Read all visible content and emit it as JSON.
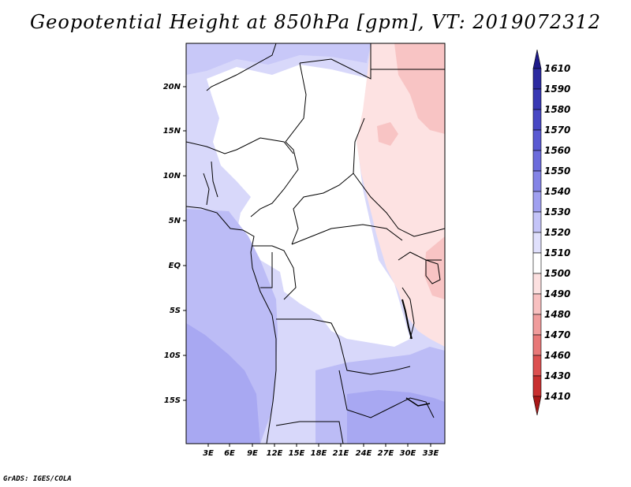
{
  "title": "Geopotential Height at 850hPa [gpm], VT: 2019072312",
  "credit": "GrADS: IGES/COLA",
  "map": {
    "lat_labels": [
      "20N",
      "15N",
      "10N",
      "5N",
      "EQ",
      "5S",
      "10S",
      "15S"
    ],
    "lon_labels": [
      "3E",
      "6E",
      "9E",
      "12E",
      "15E",
      "18E",
      "21E",
      "24E",
      "27E",
      "30E",
      "33E"
    ]
  },
  "colorbar": {
    "levels": [
      "1610",
      "1590",
      "1580",
      "1570",
      "1560",
      "1550",
      "1540",
      "1530",
      "1520",
      "1510",
      "1500",
      "1490",
      "1480",
      "1470",
      "1460",
      "1430",
      "1410"
    ],
    "colors": [
      "#1e1a8a",
      "#2c2aa0",
      "#3838b4",
      "#4848c4",
      "#5a5ad2",
      "#6c6cdc",
      "#8484e6",
      "#a0a0f0",
      "#c4c4f8",
      "#e0e0fc",
      "#ffffff",
      "#fce0e0",
      "#f8c0c0",
      "#f09c9c",
      "#e87878",
      "#dc5050",
      "#c83030",
      "#a81818"
    ]
  }
}
